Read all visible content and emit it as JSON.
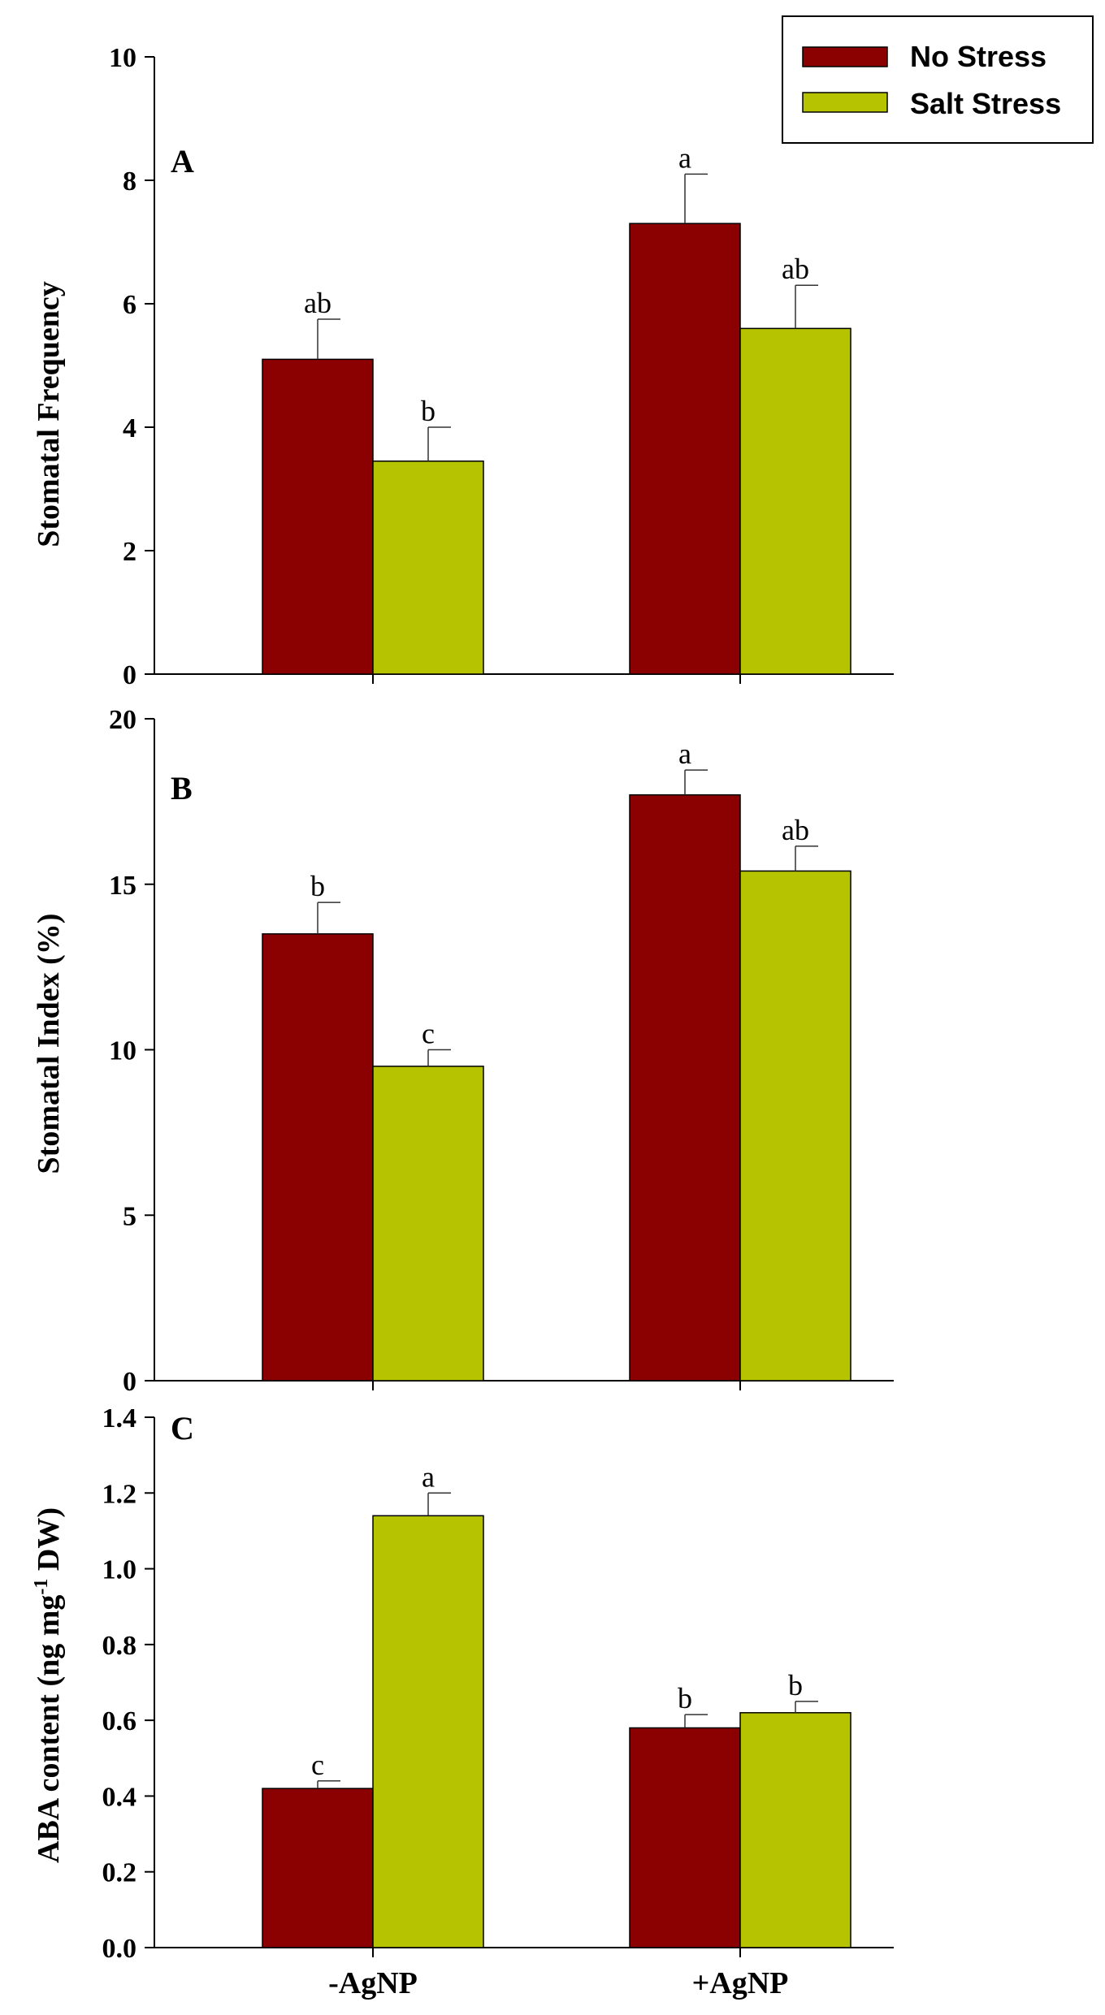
{
  "chart_data": [
    {
      "type": "bar",
      "panel_label": "A",
      "categories": [
        "-AgNP",
        "+AgNP"
      ],
      "ylabel": "Stomatal Frequency",
      "ylim": [
        0,
        10
      ],
      "yticks": [
        "0",
        "2",
        "4",
        "6",
        "8",
        "10"
      ],
      "series": [
        {
          "name": "No Stress",
          "values": [
            5.1,
            7.3
          ],
          "errors": [
            0.65,
            0.8
          ],
          "letters": [
            "ab",
            "a"
          ]
        },
        {
          "name": "Salt Stress",
          "values": [
            3.45,
            5.6
          ],
          "errors": [
            0.55,
            0.7
          ],
          "letters": [
            "b",
            "ab"
          ]
        }
      ]
    },
    {
      "type": "bar",
      "panel_label": "B",
      "categories": [
        "-AgNP",
        "+AgNP"
      ],
      "ylabel": "Stomatal Index (%)",
      "ylim": [
        0,
        20
      ],
      "yticks": [
        "0",
        "5",
        "10",
        "15",
        "20"
      ],
      "series": [
        {
          "name": "No Stress",
          "values": [
            13.5,
            17.7
          ],
          "errors": [
            0.95,
            0.75
          ],
          "letters": [
            "b",
            "a"
          ]
        },
        {
          "name": "Salt Stress",
          "values": [
            9.5,
            15.4
          ],
          "errors": [
            0.5,
            0.75
          ],
          "letters": [
            "c",
            "ab"
          ]
        }
      ]
    },
    {
      "type": "bar",
      "panel_label": "C",
      "categories": [
        "-AgNP",
        "+AgNP"
      ],
      "ylabel_main": "ABA content (ng mg",
      "ylabel_sup": "-1",
      "ylabel_tail": " DW)",
      "ylim": [
        0,
        1.4
      ],
      "yticks": [
        "0.0",
        "0.2",
        "0.4",
        "0.6",
        "0.8",
        "1.0",
        "1.2",
        "1.4"
      ],
      "series": [
        {
          "name": "No Stress",
          "values": [
            0.42,
            0.58
          ],
          "errors": [
            0.02,
            0.035
          ],
          "letters": [
            "c",
            "b"
          ]
        },
        {
          "name": "Salt Stress",
          "values": [
            1.14,
            0.62
          ],
          "errors": [
            0.06,
            0.03
          ],
          "letters": [
            "a",
            "b"
          ]
        }
      ]
    }
  ],
  "legend": {
    "items": [
      {
        "label": "No Stress",
        "color": "#8b0000"
      },
      {
        "label": "Salt Stress",
        "color": "#b5c300"
      }
    ]
  },
  "colors": {
    "no_stress": "#8b0000",
    "salt_stress": "#b5c300"
  }
}
